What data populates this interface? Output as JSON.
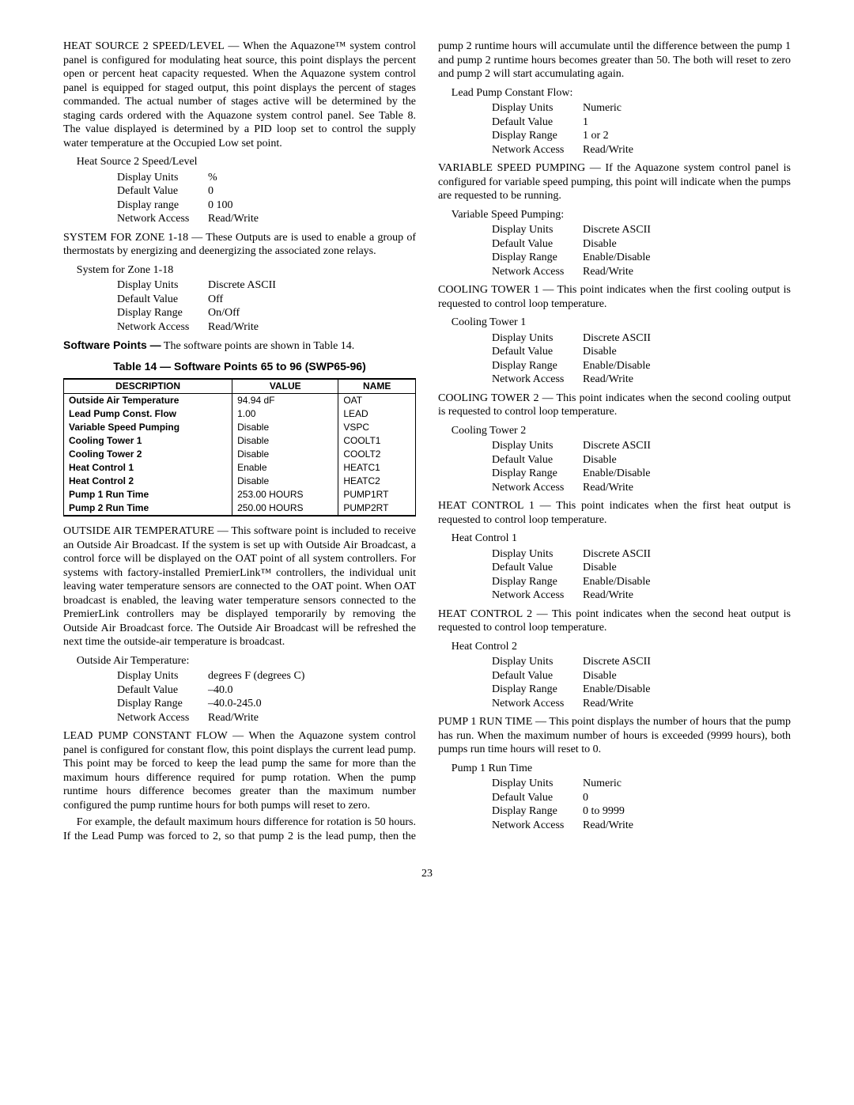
{
  "page_number": "23",
  "left": {
    "heat_source_2_desc": "HEAT SOURCE 2 SPEED/LEVEL — When the Aquazone™ system control panel is configured for modulating heat source, this point displays the percent open or percent heat capacity requested. When the Aquazone system control panel is equipped for staged output, this point displays the percent of stages commanded. The actual number of stages active will be determined by the staging cards ordered with the Aquazone system control panel. See Table 8. The value displayed is determined by a PID loop set to control the supply water temperature at the Occupied Low set point.",
    "heat_source_2_title": "Heat Source 2 Speed/Level",
    "heat_source_2": {
      "display_units": "%",
      "default_value": "0",
      "display_range": "0 100",
      "network_access": "Read/Write"
    },
    "system_zone_desc": "SYSTEM FOR ZONE 1-18 — These Outputs are is used to enable a group of thermostats by energizing and deenergizing the associated zone relays.",
    "system_zone_title": "System for Zone 1-18",
    "system_zone": {
      "display_units": "Discrete ASCII",
      "default_value": "Off",
      "display_range": "On/Off",
      "network_access": "Read/Write"
    },
    "software_points_head": "Software Points —",
    "software_points_text": " The software points are shown in Table 14.",
    "table_caption": "Table 14 — Software Points 65 to 96 (SWP65-96)",
    "table": {
      "headers": [
        "DESCRIPTION",
        "VALUE",
        "NAME"
      ],
      "rows": [
        [
          "Outside Air Temperature",
          "94.94 dF",
          "OAT"
        ],
        [
          "Lead Pump Const. Flow",
          "1.00",
          "LEAD"
        ],
        [
          "Variable Speed Pumping",
          "Disable",
          "VSPC"
        ],
        [
          "Cooling Tower 1",
          "Disable",
          "COOLT1"
        ],
        [
          "Cooling Tower 2",
          "Disable",
          "COOLT2"
        ],
        [
          "Heat Control 1",
          "Enable",
          "HEATC1"
        ],
        [
          "Heat Control 2",
          "Disable",
          "HEATC2"
        ],
        [
          "Pump 1 Run Time",
          "253.00 HOURS",
          "PUMP1RT"
        ],
        [
          "Pump 2 Run Time",
          "250.00 HOURS",
          "PUMP2RT"
        ]
      ]
    },
    "oat_desc": "OUTSIDE AIR TEMPERATURE — This software point is included to receive an Outside Air Broadcast. If the system is set up with Outside Air Broadcast, a control force will be displayed on the OAT point of all system controllers. For systems with factory-installed PremierLink™ controllers, the individual unit leaving water temperature sensors are connected to the OAT point. When OAT broadcast is enabled, the leaving water temperature sensors connected to the PremierLink controllers may be displayed temporarily by removing the Outside Air Broadcast force. The Outside Air Broadcast will be refreshed the next time the outside-air temperature is broadcast.",
    "oat_title": "Outside Air Temperature:",
    "oat": {
      "display_units": "degrees F (degrees C)",
      "default_value": "–40.0",
      "display_range": "–40.0-245.0",
      "network_access": "Read/Write"
    },
    "lead_pump_desc": "LEAD PUMP CONSTANT FLOW — When the Aquazone system control panel is configured for constant flow, this point displays the current lead pump. This point may be forced to keep the lead pump the same for more than the maximum hours difference required for pump rotation. When the pump runtime hours difference becomes greater than the maximum number configured the pump runtime hours for both pumps will reset to zero."
  },
  "right": {
    "lead_pump_example": "For example, the default maximum hours difference for rotation is 50 hours. If the Lead Pump was forced to 2, so that pump 2 is the lead pump, then the pump 2 runtime hours will accumulate until the difference between the pump 1 and pump 2 runtime hours becomes greater than 50. The both will reset to zero and pump 2 will start accumulating again.",
    "lead_pump_title": "Lead Pump Constant Flow:",
    "lead_pump": {
      "display_units": "Numeric",
      "default_value": "1",
      "display_range": "1 or 2",
      "network_access": "Read/Write"
    },
    "vsp_desc": "VARIABLE SPEED PUMPING — If the Aquazone system control panel is configured for variable speed pumping, this point will indicate when the pumps are requested to be running.",
    "vsp_title": "Variable Speed Pumping:",
    "vsp": {
      "display_units": "Discrete ASCII",
      "default_value": "Disable",
      "display_range": "Enable/Disable",
      "network_access": "Read/Write"
    },
    "ct1_desc": "COOLING TOWER 1 — This point indicates when the first cooling output is requested to control loop temperature.",
    "ct1_title": "Cooling Tower 1",
    "ct1": {
      "display_units": "Discrete ASCII",
      "default_value": "Disable",
      "display_range": "Enable/Disable",
      "network_access": "Read/Write"
    },
    "ct2_desc": "COOLING TOWER 2 — This point indicates when the second cooling output is requested to control loop temperature.",
    "ct2_title": "Cooling Tower 2",
    "ct2": {
      "display_units": "Discrete ASCII",
      "default_value": "Disable",
      "display_range": "Enable/Disable",
      "network_access": "Read/Write"
    },
    "hc1_desc": "HEAT CONTROL 1 — This point indicates when the first heat output is requested to control loop temperature.",
    "hc1_title": "Heat Control 1",
    "hc1": {
      "display_units": "Discrete ASCII",
      "default_value": "Disable",
      "display_range": "Enable/Disable",
      "network_access": "Read/Write"
    },
    "hc2_desc": "HEAT CONTROL 2 — This point indicates when the second heat output is requested to control loop temperature.",
    "hc2_title": "Heat Control 2",
    "hc2": {
      "display_units": "Discrete ASCII",
      "default_value": "Disable",
      "display_range": "Enable/Disable",
      "network_access": "Read/Write"
    },
    "p1rt_desc": "PUMP 1 RUN TIME — This point displays the number of hours that the pump has run. When the maximum number of hours is exceeded (9999 hours), both pumps run time hours will reset to 0.",
    "p1rt_title": "Pump 1 Run Time",
    "p1rt": {
      "display_units": "Numeric",
      "default_value": "0",
      "display_range": "0 to 9999",
      "network_access": "Read/Write"
    }
  },
  "labels": {
    "display_units": "Display Units",
    "default_value": "Default Value",
    "display_range": "Display Range",
    "display_range_lc": "Display range",
    "network_access": "Network Access"
  }
}
